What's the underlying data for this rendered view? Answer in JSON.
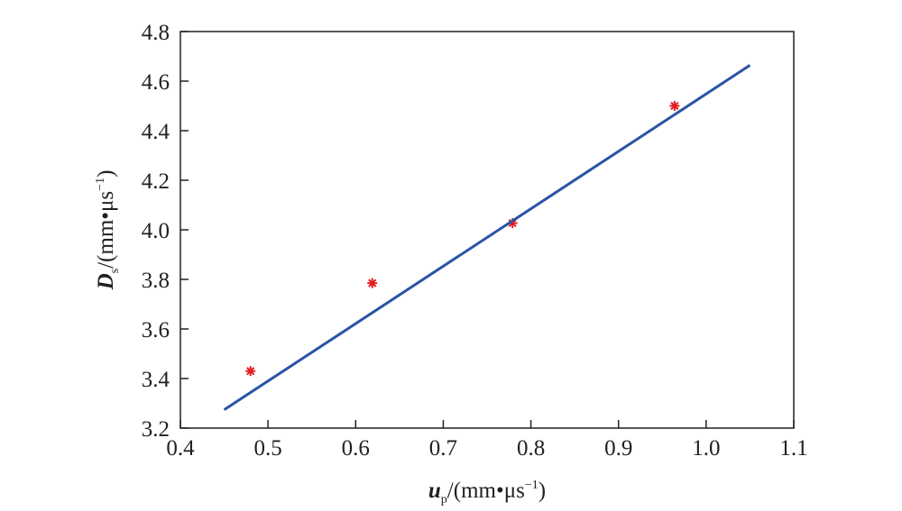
{
  "chart_data": {
    "type": "scatter",
    "title": "",
    "xlabel": {
      "var": "u",
      "sub": "p",
      "unit_open": "/(mm",
      "dot": "•",
      "unit_mid": "μs",
      "sup": "−1",
      "unit_close": ")"
    },
    "ylabel": {
      "var": "D",
      "sub": "s",
      "unit_open": "/(mm",
      "dot": "•",
      "unit_mid": "μs",
      "sup": "−1",
      "unit_close": ")"
    },
    "xlim": [
      0.4,
      1.1
    ],
    "ylim": [
      3.2,
      4.8
    ],
    "xticks": [
      "0.4",
      "0.5",
      "0.6",
      "0.7",
      "0.8",
      "0.9",
      "1.0",
      "1.1"
    ],
    "yticks": [
      "3.2",
      "3.4",
      "3.6",
      "3.8",
      "4.0",
      "4.2",
      "4.4",
      "4.6",
      "4.8"
    ],
    "grid": false,
    "series": [
      {
        "kind": "points",
        "marker": "asterisk",
        "color": "#e31e24",
        "x": [
          0.48,
          0.619,
          0.779,
          0.964
        ],
        "y": [
          3.43,
          3.785,
          4.027,
          4.5
        ]
      },
      {
        "kind": "fit-line",
        "color": "#2a54a5",
        "x": [
          0.45,
          1.05
        ],
        "y": [
          3.274,
          4.664
        ]
      }
    ]
  }
}
